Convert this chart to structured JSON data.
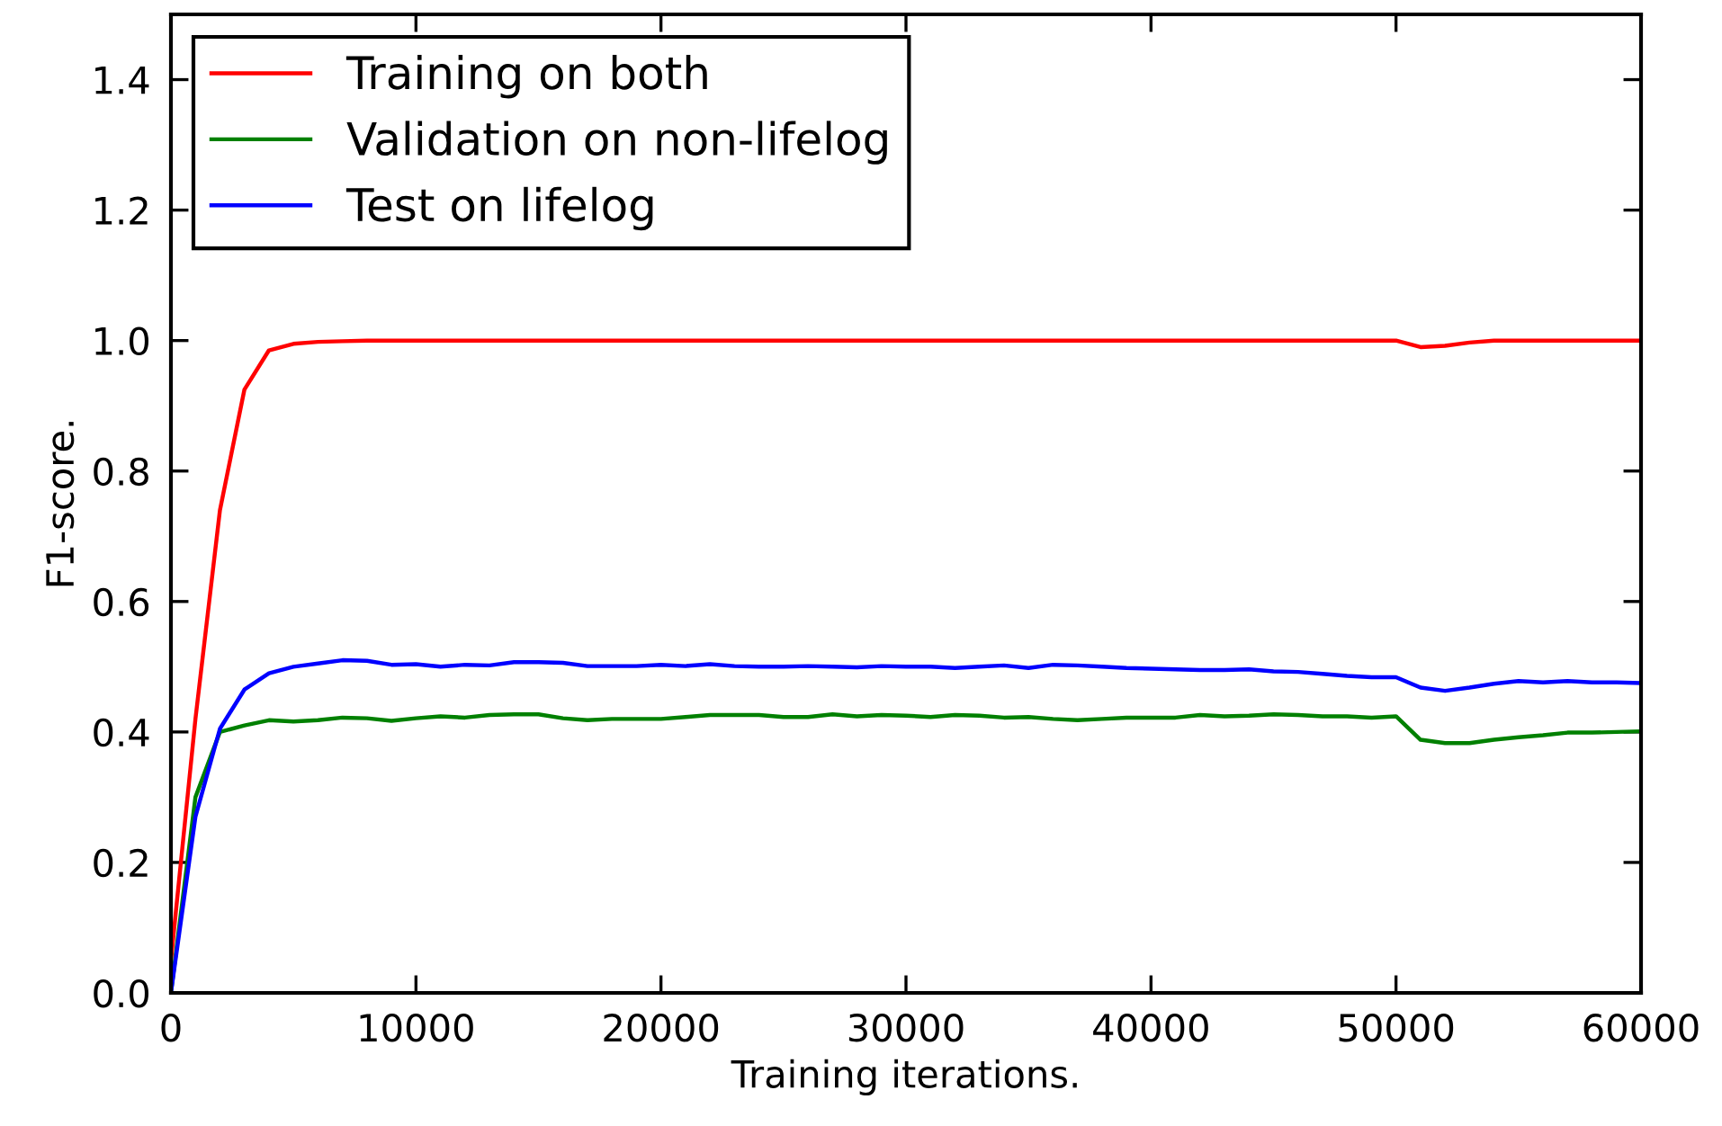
{
  "chart_data": {
    "type": "line",
    "xlabel": "Training iterations.",
    "ylabel": "F1-score.",
    "x": [
      0,
      1000,
      2000,
      3000,
      4000,
      5000,
      6000,
      7000,
      8000,
      9000,
      10000,
      11000,
      12000,
      13000,
      14000,
      15000,
      16000,
      17000,
      18000,
      19000,
      20000,
      21000,
      22000,
      23000,
      24000,
      25000,
      26000,
      27000,
      28000,
      29000,
      30000,
      31000,
      32000,
      33000,
      34000,
      35000,
      36000,
      37000,
      38000,
      39000,
      40000,
      41000,
      42000,
      43000,
      44000,
      45000,
      46000,
      47000,
      48000,
      49000,
      50000,
      51000,
      52000,
      53000,
      54000,
      55000,
      56000,
      57000,
      58000,
      59000,
      60000
    ],
    "series": [
      {
        "name": "Training on both",
        "color": "#ff0000",
        "values": [
          0.05,
          0.42,
          0.74,
          0.925,
          0.985,
          0.995,
          0.998,
          0.999,
          1.0,
          1.0,
          1.0,
          1.0,
          1.0,
          1.0,
          1.0,
          1.0,
          1.0,
          1.0,
          1.0,
          1.0,
          1.0,
          1.0,
          1.0,
          1.0,
          1.0,
          1.0,
          1.0,
          1.0,
          1.0,
          1.0,
          1.0,
          1.0,
          1.0,
          1.0,
          1.0,
          1.0,
          1.0,
          1.0,
          1.0,
          1.0,
          1.0,
          1.0,
          1.0,
          1.0,
          1.0,
          1.0,
          1.0,
          1.0,
          1.0,
          1.0,
          1.0,
          0.99,
          0.992,
          0.997,
          1.0,
          1.0,
          1.0,
          1.0,
          1.0,
          1.0,
          1.0
        ]
      },
      {
        "name": "Validation on non-lifelog",
        "color": "#008000",
        "values": [
          0.0,
          0.3,
          0.4,
          0.41,
          0.418,
          0.416,
          0.418,
          0.422,
          0.421,
          0.417,
          0.421,
          0.424,
          0.422,
          0.426,
          0.427,
          0.427,
          0.421,
          0.418,
          0.42,
          0.42,
          0.42,
          0.423,
          0.426,
          0.426,
          0.426,
          0.423,
          0.423,
          0.427,
          0.424,
          0.426,
          0.425,
          0.423,
          0.426,
          0.425,
          0.422,
          0.423,
          0.42,
          0.418,
          0.42,
          0.422,
          0.422,
          0.422,
          0.426,
          0.424,
          0.425,
          0.427,
          0.426,
          0.424,
          0.424,
          0.422,
          0.424,
          0.388,
          0.383,
          0.383,
          0.388,
          0.392,
          0.395,
          0.399,
          0.399,
          0.4,
          0.401
        ]
      },
      {
        "name": "Test on lifelog",
        "color": "#0000ff",
        "values": [
          0.0,
          0.27,
          0.405,
          0.465,
          0.49,
          0.5,
          0.505,
          0.51,
          0.509,
          0.503,
          0.504,
          0.5,
          0.503,
          0.502,
          0.507,
          0.507,
          0.506,
          0.501,
          0.501,
          0.501,
          0.503,
          0.501,
          0.504,
          0.501,
          0.5,
          0.5,
          0.501,
          0.5,
          0.499,
          0.501,
          0.5,
          0.5,
          0.498,
          0.5,
          0.502,
          0.498,
          0.503,
          0.502,
          0.5,
          0.498,
          0.497,
          0.496,
          0.495,
          0.495,
          0.496,
          0.493,
          0.492,
          0.489,
          0.486,
          0.484,
          0.484,
          0.468,
          0.463,
          0.468,
          0.474,
          0.478,
          0.476,
          0.478,
          0.476,
          0.476,
          0.475
        ]
      }
    ],
    "xlim": [
      0,
      60000
    ],
    "xticks": [
      0,
      10000,
      20000,
      30000,
      40000,
      50000,
      60000
    ],
    "ylim": [
      0,
      1.5
    ],
    "yticks": [
      {
        "value": 0,
        "label": "0.0"
      },
      {
        "value": 0.2,
        "label": "0.2"
      },
      {
        "value": 0.4,
        "label": "0.4"
      },
      {
        "value": 0.6,
        "label": "0.6"
      },
      {
        "value": 0.8,
        "label": "0.8"
      },
      {
        "value": 1.0,
        "label": "1.0"
      },
      {
        "value": 1.2,
        "label": "1.2"
      },
      {
        "value": 1.4,
        "label": "1.4"
      }
    ],
    "legend": "top left",
    "grid": false,
    "line_style": "solid",
    "marker": "none"
  }
}
